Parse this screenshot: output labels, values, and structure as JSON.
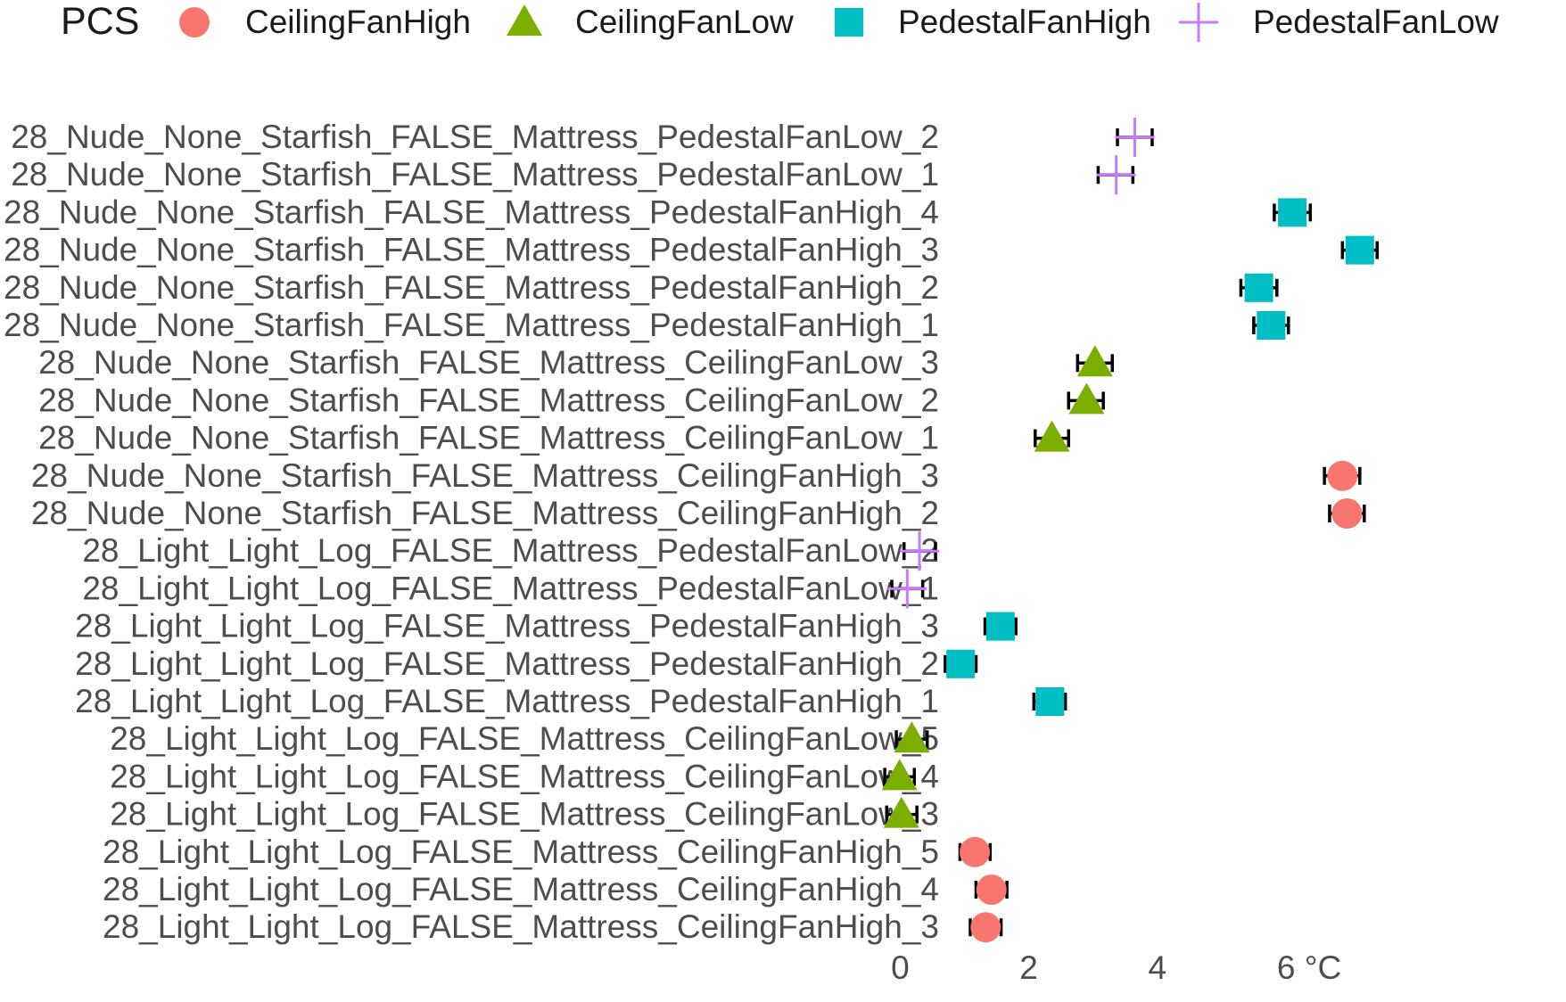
{
  "chart_data": {
    "type": "scatter",
    "orientation": "horizontal",
    "legend": {
      "title": "PCS",
      "position": "top",
      "entries": [
        {
          "name": "CeilingFanHigh",
          "shape": "circle",
          "color": "#F8766D"
        },
        {
          "name": "CeilingFanLow",
          "shape": "triangle",
          "color": "#7CAE00"
        },
        {
          "name": "PedestalFanHigh",
          "shape": "square",
          "color": "#00BFC4"
        },
        {
          "name": "PedestalFanLow",
          "shape": "plus",
          "color": "#C77CFF"
        }
      ]
    },
    "xlim": [
      -0.2,
      7.5
    ],
    "x_ticks": [
      {
        "value": 0,
        "label": "0"
      },
      {
        "value": 2,
        "label": "2"
      },
      {
        "value": 4,
        "label": "4"
      },
      {
        "value": 6,
        "label": "6 °C"
      }
    ],
    "grid": false,
    "error_bars": true,
    "points": [
      {
        "label": "28_Nude_None_Starfish_FALSE_Mattress_PedestalFanLow_2",
        "series": "PedestalFanLow",
        "value": 3.65,
        "low": 3.38,
        "high": 3.92
      },
      {
        "label": "28_Nude_None_Starfish_FALSE_Mattress_PedestalFanLow_1",
        "series": "PedestalFanLow",
        "value": 3.36,
        "low": 3.08,
        "high": 3.62
      },
      {
        "label": "28_Nude_None_Starfish_FALSE_Mattress_PedestalFanHigh_4",
        "series": "PedestalFanHigh",
        "value": 6.1,
        "low": 5.82,
        "high": 6.38
      },
      {
        "label": "28_Nude_None_Starfish_FALSE_Mattress_PedestalFanHigh_3",
        "series": "PedestalFanHigh",
        "value": 7.15,
        "low": 6.88,
        "high": 7.42
      },
      {
        "label": "28_Nude_None_Starfish_FALSE_Mattress_PedestalFanHigh_2",
        "series": "PedestalFanHigh",
        "value": 5.58,
        "low": 5.3,
        "high": 5.86
      },
      {
        "label": "28_Nude_None_Starfish_FALSE_Mattress_PedestalFanHigh_1",
        "series": "PedestalFanHigh",
        "value": 5.77,
        "low": 5.5,
        "high": 6.04
      },
      {
        "label": "28_Nude_None_Starfish_FALSE_Mattress_CeilingFanLow_3",
        "series": "CeilingFanLow",
        "value": 3.03,
        "low": 2.76,
        "high": 3.3
      },
      {
        "label": "28_Nude_None_Starfish_FALSE_Mattress_CeilingFanLow_2",
        "series": "CeilingFanLow",
        "value": 2.9,
        "low": 2.62,
        "high": 3.16
      },
      {
        "label": "28_Nude_None_Starfish_FALSE_Mattress_CeilingFanLow_1",
        "series": "CeilingFanLow",
        "value": 2.36,
        "low": 2.1,
        "high": 2.62
      },
      {
        "label": "28_Nude_None_Starfish_FALSE_Mattress_CeilingFanHigh_3",
        "series": "CeilingFanHigh",
        "value": 6.88,
        "low": 6.6,
        "high": 7.15
      },
      {
        "label": "28_Nude_None_Starfish_FALSE_Mattress_CeilingFanHigh_2",
        "series": "CeilingFanHigh",
        "value": 6.95,
        "low": 6.68,
        "high": 7.22
      },
      {
        "label": "28_Light_Light_Log_FALSE_Mattress_PedestalFanLow_2",
        "series": "PedestalFanLow",
        "value": 0.3,
        "low": 0.06,
        "high": 0.55
      },
      {
        "label": "28_Light_Light_Log_FALSE_Mattress_PedestalFanLow_1",
        "series": "PedestalFanLow",
        "value": 0.11,
        "low": -0.13,
        "high": 0.35
      },
      {
        "label": "28_Light_Light_Log_FALSE_Mattress_PedestalFanHigh_3",
        "series": "PedestalFanHigh",
        "value": 1.56,
        "low": 1.32,
        "high": 1.8
      },
      {
        "label": "28_Light_Light_Log_FALSE_Mattress_PedestalFanHigh_2",
        "series": "PedestalFanHigh",
        "value": 0.94,
        "low": 0.7,
        "high": 1.18
      },
      {
        "label": "28_Light_Light_Log_FALSE_Mattress_PedestalFanHigh_1",
        "series": "PedestalFanHigh",
        "value": 2.33,
        "low": 2.08,
        "high": 2.57
      },
      {
        "label": "28_Light_Light_Log_FALSE_Mattress_CeilingFanLow_5",
        "series": "CeilingFanLow",
        "value": 0.18,
        "low": -0.06,
        "high": 0.42
      },
      {
        "label": "28_Light_Light_Log_FALSE_Mattress_CeilingFanLow_4",
        "series": "CeilingFanLow",
        "value": -0.01,
        "low": -0.24,
        "high": 0.22
      },
      {
        "label": "28_Light_Light_Log_FALSE_Mattress_CeilingFanLow_3",
        "series": "CeilingFanLow",
        "value": 0.02,
        "low": -0.21,
        "high": 0.26
      },
      {
        "label": "28_Light_Light_Log_FALSE_Mattress_CeilingFanHigh_5",
        "series": "CeilingFanHigh",
        "value": 1.16,
        "low": 0.93,
        "high": 1.4
      },
      {
        "label": "28_Light_Light_Log_FALSE_Mattress_CeilingFanHigh_4",
        "series": "CeilingFanHigh",
        "value": 1.42,
        "low": 1.18,
        "high": 1.66
      },
      {
        "label": "28_Light_Light_Log_FALSE_Mattress_CeilingFanHigh_3",
        "series": "CeilingFanHigh",
        "value": 1.33,
        "low": 1.09,
        "high": 1.57
      }
    ]
  }
}
